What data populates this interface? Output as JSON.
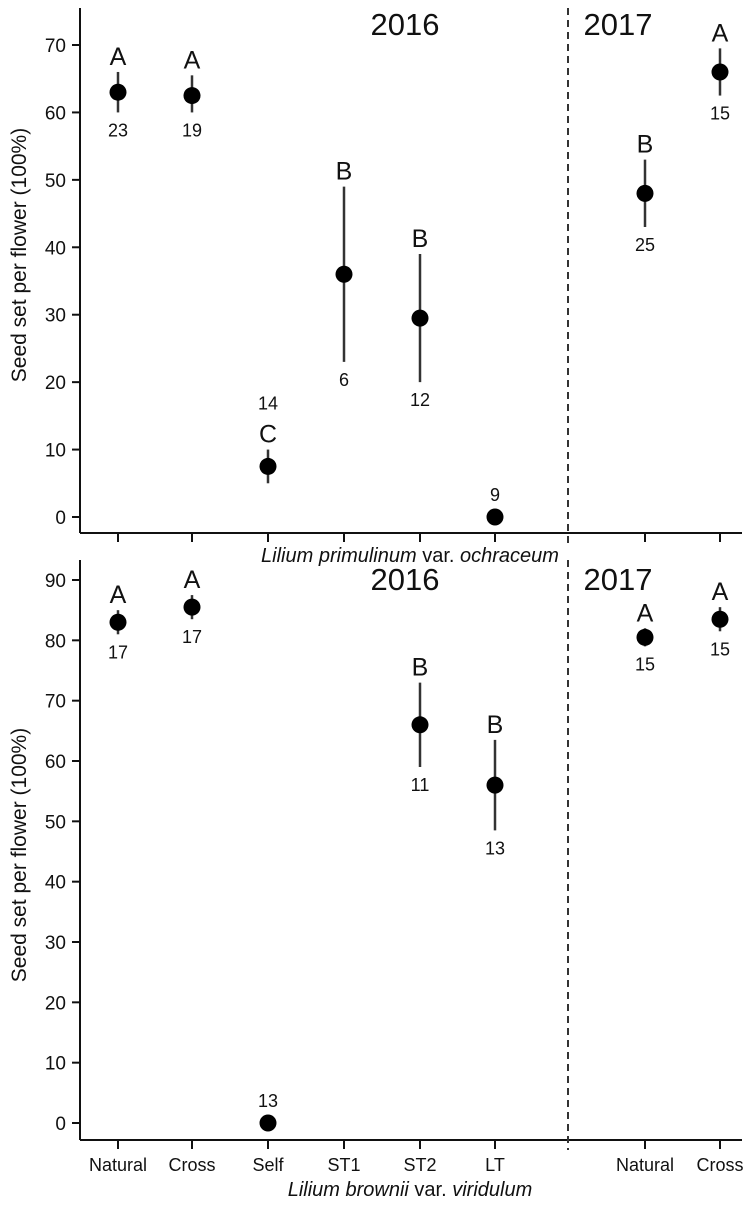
{
  "chart_data": [
    {
      "type": "scatter",
      "panel": "top",
      "ylabel": "Seed set per flower (100%)",
      "xlabel_italic_1": "Lilium primulinum",
      "xlabel_plain": " var. ",
      "xlabel_italic_2": "ochraceum",
      "year_labels": [
        "2016",
        "2017"
      ],
      "ylim": [
        0,
        70
      ],
      "yticks": [
        0,
        10,
        20,
        30,
        40,
        50,
        60,
        70
      ],
      "categories": [
        "Natural",
        "Cross",
        "Self",
        "ST1",
        "ST2",
        "LT",
        "Natural",
        "Cross"
      ],
      "show_tick_labels": false,
      "points": [
        {
          "cat": 0,
          "mean": 63,
          "lo": 60,
          "hi": 66,
          "letter": "A",
          "n": "23",
          "n_pos": "below"
        },
        {
          "cat": 1,
          "mean": 62.5,
          "lo": 60,
          "hi": 65.5,
          "letter": "A",
          "n": "19",
          "n_pos": "below"
        },
        {
          "cat": 2,
          "mean": 7.5,
          "lo": 5,
          "hi": 10,
          "letter": "C",
          "n": "14",
          "n_pos": "above"
        },
        {
          "cat": 3,
          "mean": 36,
          "lo": 23,
          "hi": 49,
          "letter": "B",
          "n": "6",
          "n_pos": "below"
        },
        {
          "cat": 4,
          "mean": 29.5,
          "lo": 20,
          "hi": 39,
          "letter": "B",
          "n": "12",
          "n_pos": "below"
        },
        {
          "cat": 5,
          "mean": 0,
          "lo": 0,
          "hi": 0,
          "letter": "",
          "n": "9",
          "n_pos": "above"
        },
        {
          "cat": 6,
          "mean": 48,
          "lo": 43,
          "hi": 53,
          "letter": "B",
          "n": "25",
          "n_pos": "below"
        },
        {
          "cat": 7,
          "mean": 66,
          "lo": 62.5,
          "hi": 69.5,
          "letter": "A",
          "n": "15",
          "n_pos": "below"
        }
      ]
    },
    {
      "type": "scatter",
      "panel": "bottom",
      "ylabel": "Seed set per flower (100%)",
      "xlabel_italic_1": "Lilium brownii",
      "xlabel_plain": " var. ",
      "xlabel_italic_2": "viridulum",
      "year_labels": [
        "2016",
        "2017"
      ],
      "ylim": [
        0,
        90
      ],
      "yticks": [
        0,
        10,
        20,
        30,
        40,
        50,
        60,
        70,
        80,
        90
      ],
      "categories": [
        "Natural",
        "Cross",
        "Self",
        "ST1",
        "ST2",
        "LT",
        "Natural",
        "Cross"
      ],
      "show_tick_labels": true,
      "points": [
        {
          "cat": 0,
          "mean": 83,
          "lo": 81,
          "hi": 85,
          "letter": "A",
          "n": "17",
          "n_pos": "below"
        },
        {
          "cat": 1,
          "mean": 85.5,
          "lo": 83.5,
          "hi": 87.5,
          "letter": "A",
          "n": "17",
          "n_pos": "below"
        },
        {
          "cat": 2,
          "mean": 0,
          "lo": 0,
          "hi": 0,
          "letter": "",
          "n": "13",
          "n_pos": "above"
        },
        {
          "cat": 4,
          "mean": 66,
          "lo": 59,
          "hi": 73,
          "letter": "B",
          "n": "11",
          "n_pos": "below"
        },
        {
          "cat": 5,
          "mean": 56,
          "lo": 48.5,
          "hi": 63.5,
          "letter": "B",
          "n": "13",
          "n_pos": "below"
        },
        {
          "cat": 6,
          "mean": 80.5,
          "lo": 79,
          "hi": 82,
          "letter": "A",
          "n": "15",
          "n_pos": "below"
        },
        {
          "cat": 7,
          "mean": 83.5,
          "lo": 81.5,
          "hi": 85.5,
          "letter": "A",
          "n": "15",
          "n_pos": "below"
        }
      ]
    }
  ]
}
